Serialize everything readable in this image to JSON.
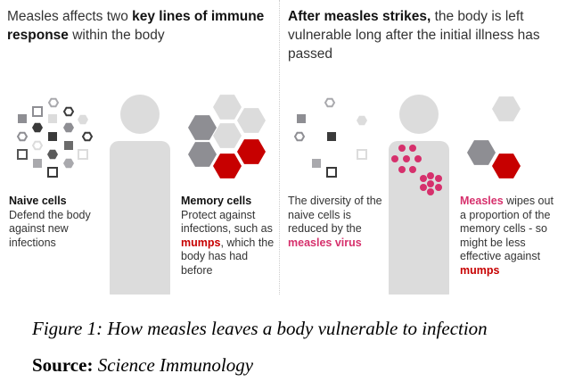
{
  "left": {
    "heading_pre": "Measles affects two ",
    "heading_bold": "key lines of immune response",
    "heading_post": " within the body",
    "naive": {
      "title": "Naive cells",
      "text": "Defend the body against new infections"
    },
    "memory": {
      "title": "Memory cells",
      "text_pre": "Protect against infections, such as ",
      "highlight": "mumps",
      "text_post": ", which the body has had before"
    }
  },
  "right": {
    "heading_bold": "After measles strikes,",
    "heading_post": " the body is left vulnerable long after the initial illness has passed",
    "naive": {
      "text_pre": "The diversity of the naive cells is reduced by the ",
      "highlight": "measles virus"
    },
    "memory": {
      "highlight1": "Measles",
      "text_mid": " wipes out a proportion of the memory cells - so might be less effective against ",
      "highlight2": "mumps"
    }
  },
  "caption": "Figure 1: How measles leaves a body vulnerable to infection",
  "source": {
    "label": "Source:",
    "value": "Science Immunology"
  },
  "colors": {
    "red": "#c70000",
    "pink": "#d6306c",
    "light_gray": "#dcdcdc",
    "mid_gray": "#8e8e93",
    "dark": "#333333"
  }
}
